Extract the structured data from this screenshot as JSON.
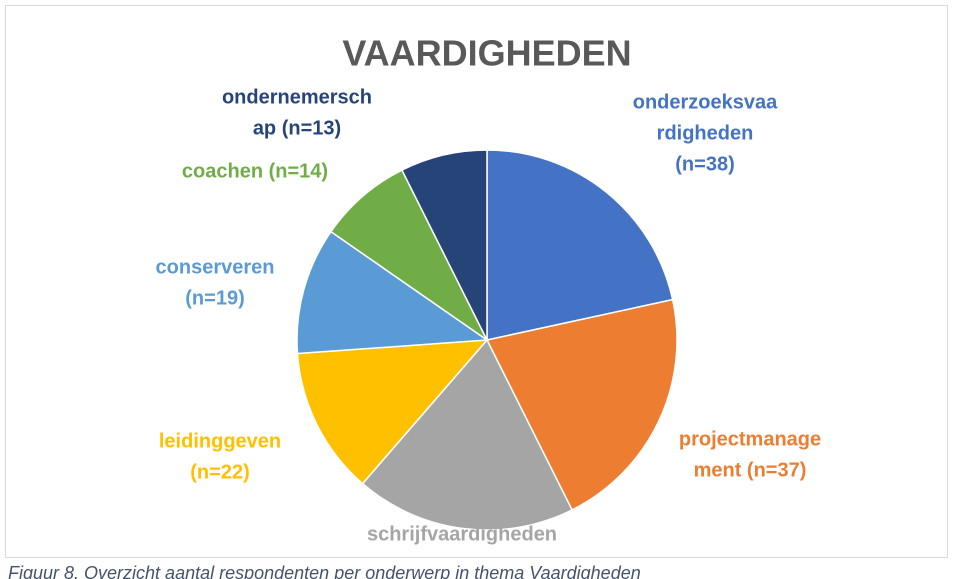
{
  "chart_data": {
    "type": "pie",
    "title": "VAARDIGHEDEN",
    "categories": [
      "onderzoeksvaardigheden",
      "projectmanagement",
      "schrijfvaardigheden",
      "leidinggeven",
      "conserveren",
      "coachen",
      "ondernemerschap"
    ],
    "values": [
      38,
      37,
      33,
      22,
      19,
      14,
      13
    ],
    "value_labels": [
      [
        "onderzoeksvaa",
        "rdigheden",
        "(n=38)"
      ],
      [
        "projectmanage",
        "ment (n=37)"
      ],
      [
        "schrijfvaardigheden"
      ],
      [
        "leidinggeven",
        "(n=22)"
      ],
      [
        "conserveren",
        "(n=19)"
      ],
      [
        "coachen (n=14)"
      ],
      [
        "ondernemersch",
        "ap (n=13)"
      ]
    ],
    "colors": [
      "#4472c4",
      "#ed7d31",
      "#a5a5a5",
      "#ffc000",
      "#5b9bd5",
      "#70ad47",
      "#264478"
    ]
  },
  "caption": "Figuur 8. Overzicht aantal respondenten per onderwerp in thema Vaardigheden"
}
